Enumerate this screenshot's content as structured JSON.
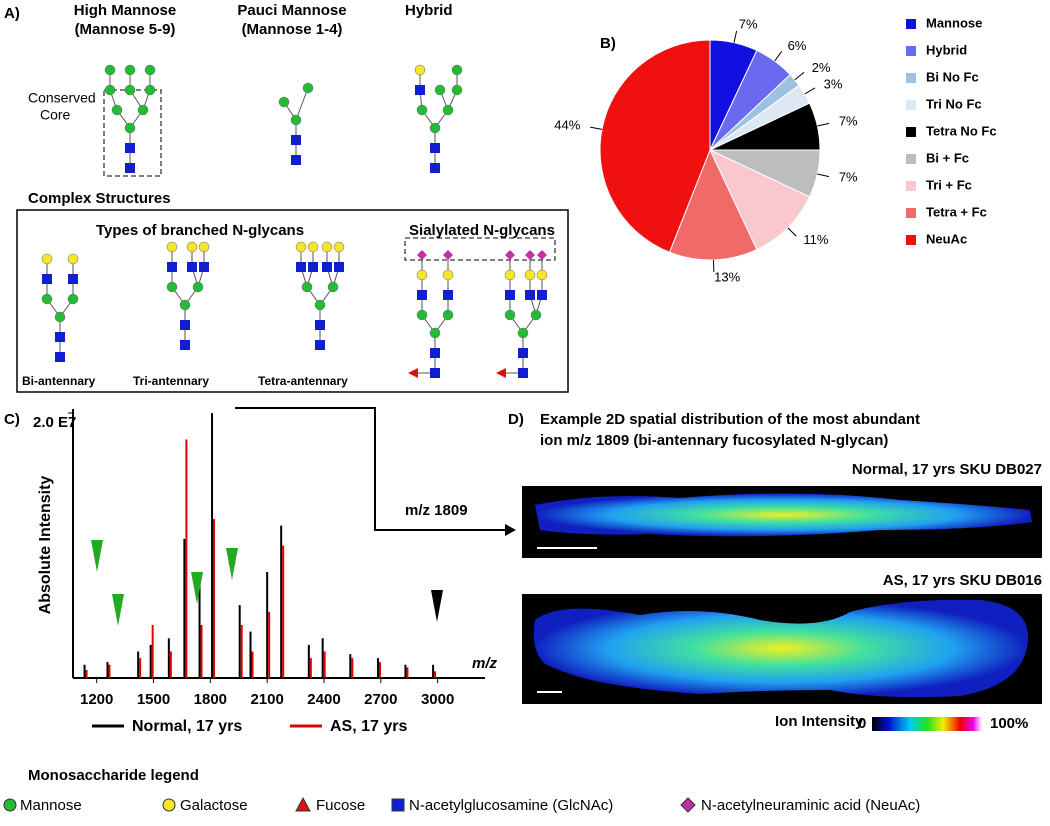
{
  "panel_a": {
    "label": "A)",
    "high_mannose": [
      "High Mannose",
      "(Mannose 5-9)"
    ],
    "pauci_mannose": [
      "Pauci Mannose",
      "(Mannose 1-4)"
    ],
    "hybrid": "Hybrid",
    "core": [
      "Conserved",
      "Core"
    ],
    "complex_title": "Complex Structures",
    "branched_title": "Types of branched N-glycans",
    "sialylated_title": "Sialylated N-glycans",
    "branch_labels": [
      "Bi-antennary",
      "Tri-antennary",
      "Tetra-antennary"
    ]
  },
  "chart_data": [
    {
      "type": "pie",
      "label": "B)",
      "categories": [
        "Mannose",
        "Hybrid",
        "Bi No Fc",
        "Tri No Fc",
        "Tetra No Fc",
        "Bi + Fc",
        "Tri + Fc",
        "Tetra + Fc",
        "NeuAc"
      ],
      "values": [
        7,
        6,
        2,
        3,
        7,
        7,
        11,
        13,
        44
      ],
      "value_labels": [
        "7%",
        "6%",
        "2%",
        "3%",
        "7%",
        "7%",
        "11%",
        "13%",
        "44%"
      ],
      "colors": [
        "#1010e0",
        "#6a6af0",
        "#9cc2e0",
        "#dde8f5",
        "#000000",
        "#bdbdbd",
        "#f8c8cc",
        "#f06a6a",
        "#f01010"
      ]
    },
    {
      "type": "bar",
      "label": "C)",
      "y_label": "Absolute Intensity",
      "x_label": "m/z",
      "x": [
        1136,
        1257,
        1419,
        1485,
        1581,
        1663,
        1743,
        1809,
        1955,
        2012,
        2100,
        2174,
        2320,
        2393,
        2539,
        2685,
        2830,
        2976
      ],
      "series": [
        {
          "name": "Normal, 17 yrs",
          "color": "#000000",
          "values": [
            1000000,
            1200000,
            2000000,
            2500000,
            3000000,
            10500000,
            8000000,
            20000000,
            5500000,
            3500000,
            8000000,
            11500000,
            2500000,
            3000000,
            1800000,
            1500000,
            1000000,
            1000000
          ]
        },
        {
          "name": "AS, 17 yrs",
          "color": "#e00000",
          "values": [
            600000,
            1000000,
            1500000,
            4000000,
            2000000,
            18000000,
            4000000,
            12000000,
            4000000,
            2000000,
            5000000,
            10000000,
            1500000,
            2000000,
            1500000,
            1200000,
            800000,
            500000
          ]
        }
      ],
      "xlim": [
        1075,
        3250
      ],
      "ylim": [
        0,
        20000000
      ],
      "xticks": [
        1200,
        1500,
        1800,
        2100,
        2400,
        2700,
        3000
      ],
      "yticks": [
        {
          "value": 20000000,
          "label": "2.0 E7"
        }
      ]
    }
  ],
  "panel_d": {
    "label": "D)",
    "title": [
      "Example 2D spatial distribution of the most abundant",
      "ion m/z 1809 (bi-antennary fucosylated N-glycan)"
    ],
    "arrow_label": "m/z 1809",
    "images": [
      "Normal, 17 yrs SKU DB027",
      "AS, 17 yrs SKU DB016"
    ],
    "colorbar": {
      "title": "Ion Intensity",
      "min_label": "0",
      "max_label": "100%"
    }
  },
  "legend": {
    "title": "Monosaccharide legend",
    "items": [
      "Mannose",
      "Galactose",
      "Fucose",
      "N-acetylglucosamine (GlcNAc)",
      "N-acetylneuraminic acid (NeuAc)"
    ]
  }
}
